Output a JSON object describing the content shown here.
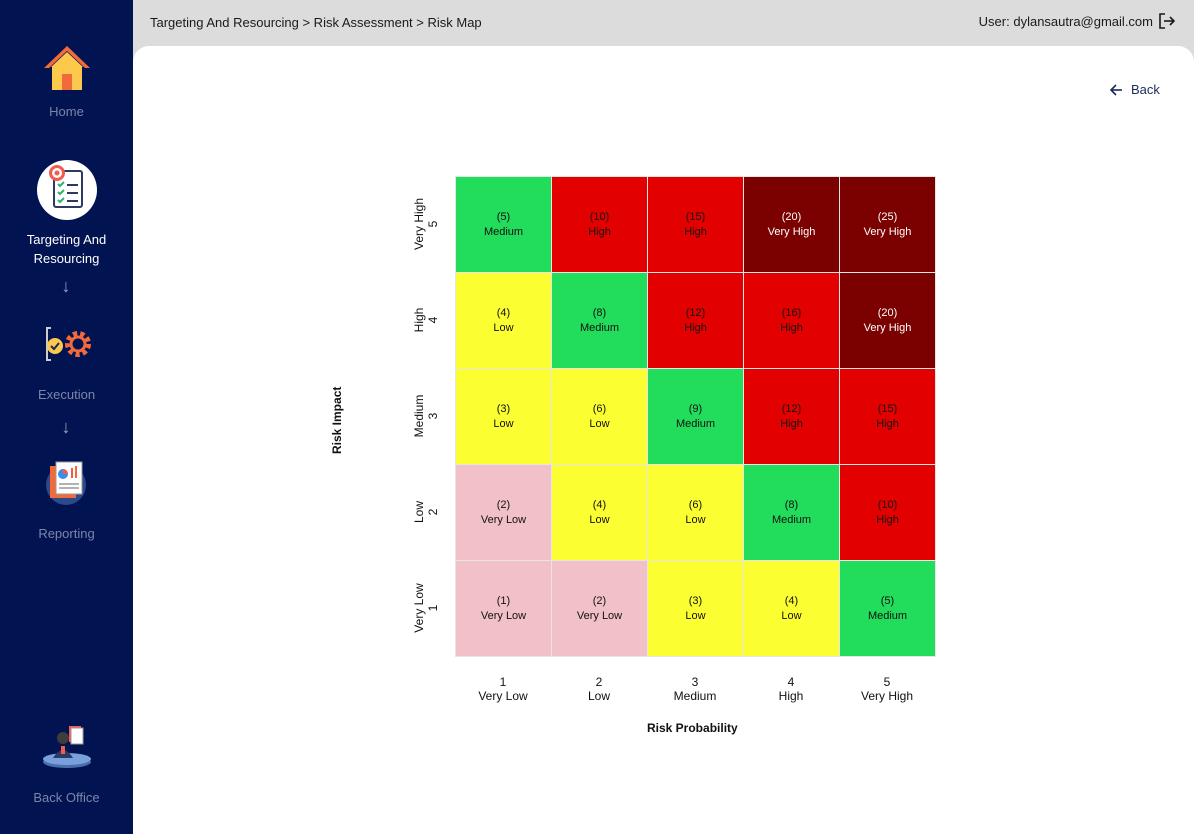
{
  "breadcrumb": "Targeting And Resourcing > Risk Assessment > Risk Map",
  "user": "User: dylansautra@gmail.com",
  "back_label": "Back",
  "sidebar": {
    "home": "Home",
    "targeting": "Targeting And Resourcing",
    "execution": "Execution",
    "reporting": "Reporting",
    "back_office": "Back Office"
  },
  "colors": {
    "sidebar": "#011351",
    "very_low": "#f2c1c8",
    "low": "#fbff32",
    "medium": "#22dc5c",
    "high": "#e20000",
    "very_high": "#7b0000"
  },
  "chart_data": {
    "type": "heatmap",
    "xlabel": "Risk Probability",
    "ylabel": "Risk Impact",
    "x_categories": [
      {
        "num": "1",
        "name": "Very Low"
      },
      {
        "num": "2",
        "name": "Low"
      },
      {
        "num": "3",
        "name": "Medium"
      },
      {
        "num": "4",
        "name": "High"
      },
      {
        "num": "5",
        "name": "Very High"
      }
    ],
    "y_categories": [
      {
        "num": "5",
        "name": "Very High"
      },
      {
        "num": "4",
        "name": "High"
      },
      {
        "num": "3",
        "name": "Medium"
      },
      {
        "num": "2",
        "name": "Low"
      },
      {
        "num": "1",
        "name": "Very Low"
      }
    ],
    "rows": [
      [
        {
          "score": "(5)",
          "level": "Medium"
        },
        {
          "score": "(10)",
          "level": "High"
        },
        {
          "score": "(15)",
          "level": "High"
        },
        {
          "score": "(20)",
          "level": "Very High"
        },
        {
          "score": "(25)",
          "level": "Very High"
        }
      ],
      [
        {
          "score": "(4)",
          "level": "Low"
        },
        {
          "score": "(8)",
          "level": "Medium"
        },
        {
          "score": "(12)",
          "level": "High"
        },
        {
          "score": "(16)",
          "level": "High"
        },
        {
          "score": "(20)",
          "level": "Very High"
        }
      ],
      [
        {
          "score": "(3)",
          "level": "Low"
        },
        {
          "score": "(6)",
          "level": "Low"
        },
        {
          "score": "(9)",
          "level": "Medium"
        },
        {
          "score": "(12)",
          "level": "High"
        },
        {
          "score": "(15)",
          "level": "High"
        }
      ],
      [
        {
          "score": "(2)",
          "level": "Very Low"
        },
        {
          "score": "(4)",
          "level": "Low"
        },
        {
          "score": "(6)",
          "level": "Low"
        },
        {
          "score": "(8)",
          "level": "Medium"
        },
        {
          "score": "(10)",
          "level": "High"
        }
      ],
      [
        {
          "score": "(1)",
          "level": "Very Low"
        },
        {
          "score": "(2)",
          "level": "Very Low"
        },
        {
          "score": "(3)",
          "level": "Low"
        },
        {
          "score": "(4)",
          "level": "Low"
        },
        {
          "score": "(5)",
          "level": "Medium"
        }
      ]
    ]
  }
}
